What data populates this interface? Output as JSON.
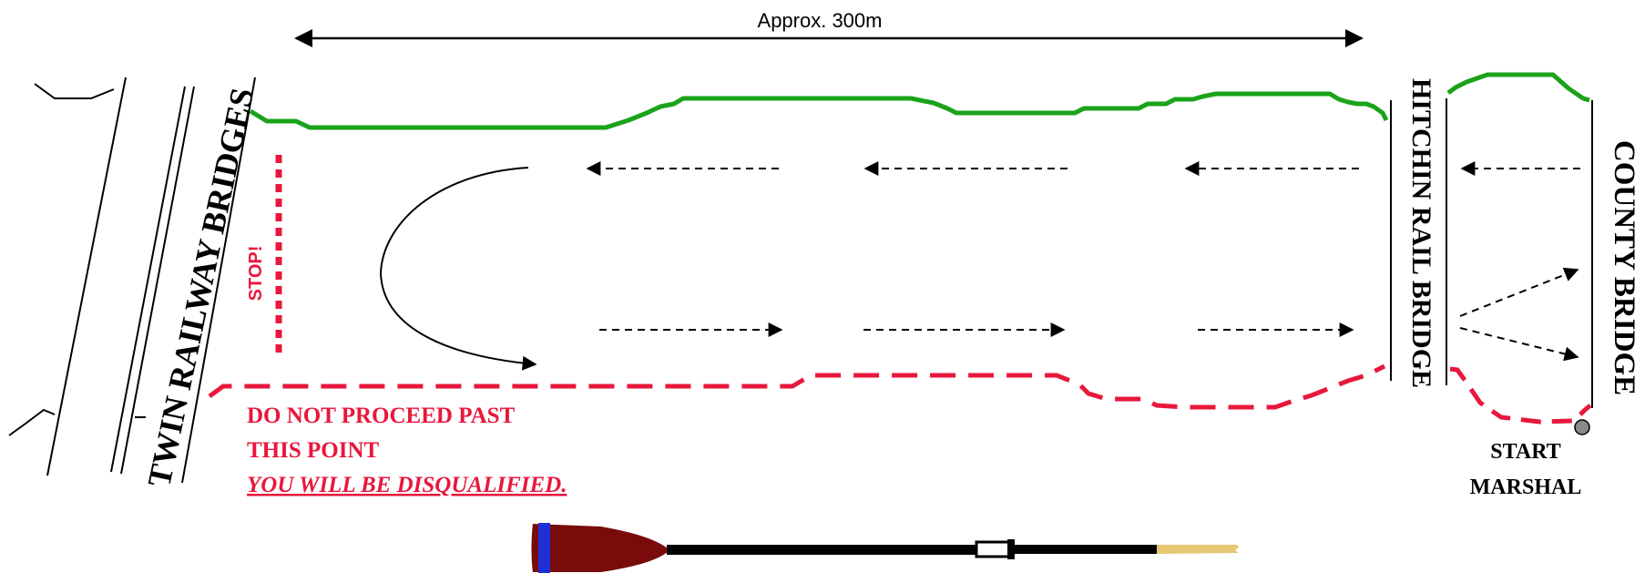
{
  "distance_label": "Approx. 300m",
  "bridges": {
    "twin": "TWIN RAILWAY BRIDGES",
    "hitchin": "HITCHIN RAIL BRIDGE",
    "county": "COUNTY BRIDGE"
  },
  "stop_label": "STOP!",
  "warning": {
    "line1": "DO  NOT PROCEED  PAST",
    "line2": "THIS  POINT",
    "line3": "YOU WILL BE DISQUALIFIED."
  },
  "marshal": {
    "line1": "START",
    "line2": "MARSHAL"
  },
  "colors": {
    "bank": "#1aa31a",
    "warning": "#e8173c",
    "oar_blade": "#7a0b0b",
    "oar_stripe": "#1f2fd6",
    "oar_tip": "#e6c873",
    "marshal_dot": "#8a8a8a"
  }
}
